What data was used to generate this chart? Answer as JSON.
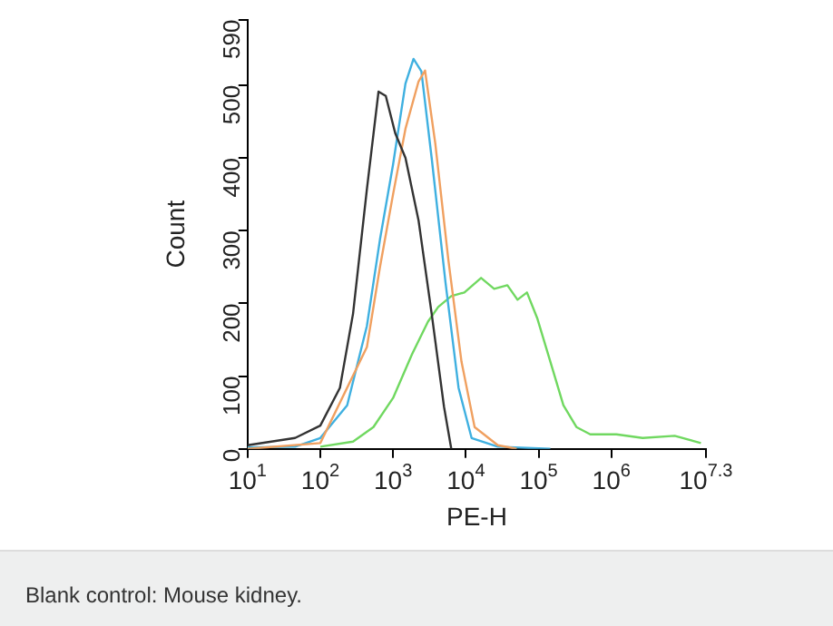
{
  "chart_data": {
    "type": "line",
    "xlabel": "PE-H",
    "ylabel": "Count",
    "log": "x",
    "grid": false,
    "legend": false,
    "marker": "none",
    "line_style": "solid",
    "xlim": [
      10,
      19952623
    ],
    "xticks": [
      {
        "value": 10,
        "label": "10$^{1}$"
      },
      {
        "value": 100,
        "label": "10$^{2}$"
      },
      {
        "value": 1000,
        "label": "10$^{3}$"
      },
      {
        "value": 10000,
        "label": "10$^{4}$"
      },
      {
        "value": 100000,
        "label": "10$^{5}$"
      },
      {
        "value": 1000000,
        "label": "10$^{6}$"
      },
      {
        "value": 19952623,
        "label": "10$^{7.3}$"
      }
    ],
    "ylim": [
      0,
      590
    ],
    "yticks": [
      0,
      100,
      200,
      300,
      400,
      500,
      590
    ],
    "annotations": [
      "Blank control: Mouse kidney."
    ],
    "series": [
      {
        "color": "#333333",
        "x": [
          10,
          45,
          100,
          186,
          282,
          437,
          631,
          794,
          1070,
          1480,
          2240,
          3390,
          5010,
          6310
        ],
        "values": [
          5,
          15,
          32,
          84,
          186,
          357,
          491,
          485,
          434,
          400,
          314,
          186,
          58,
          0
        ]
      },
      {
        "color": "#f0a060",
        "x": [
          10,
          100,
          437,
          661,
          1000,
          1480,
          2240,
          2750,
          3800,
          5750,
          8710,
          13200,
          27500,
          50000
        ],
        "values": [
          0,
          8,
          140,
          250,
          350,
          440,
          505,
          520,
          420,
          260,
          120,
          30,
          5,
          0
        ]
      },
      {
        "color": "#3fb0e0",
        "x": [
          10,
          45,
          100,
          234,
          437,
          661,
          1000,
          1480,
          1910,
          2450,
          3390,
          5250,
          7940,
          12000,
          27500,
          145000
        ],
        "values": [
          2,
          3,
          15,
          60,
          169,
          288,
          391,
          502,
          536,
          519,
          400,
          229,
          84,
          15,
          3,
          0
        ]
      },
      {
        "color": "#70d860",
        "x": [
          100,
          282,
          537,
          1000,
          1820,
          3020,
          4170,
          6310,
          9550,
          16200,
          24500,
          37200,
          51300,
          69200,
          95500,
          145000,
          219000,
          331000,
          513000,
          1170000,
          2690000,
          7410000,
          17000000
        ],
        "values": [
          3,
          10,
          30,
          70,
          130,
          175,
          195,
          210,
          215,
          235,
          220,
          225,
          205,
          215,
          180,
          120,
          60,
          30,
          20,
          20,
          15,
          18,
          8
        ]
      }
    ]
  }
}
